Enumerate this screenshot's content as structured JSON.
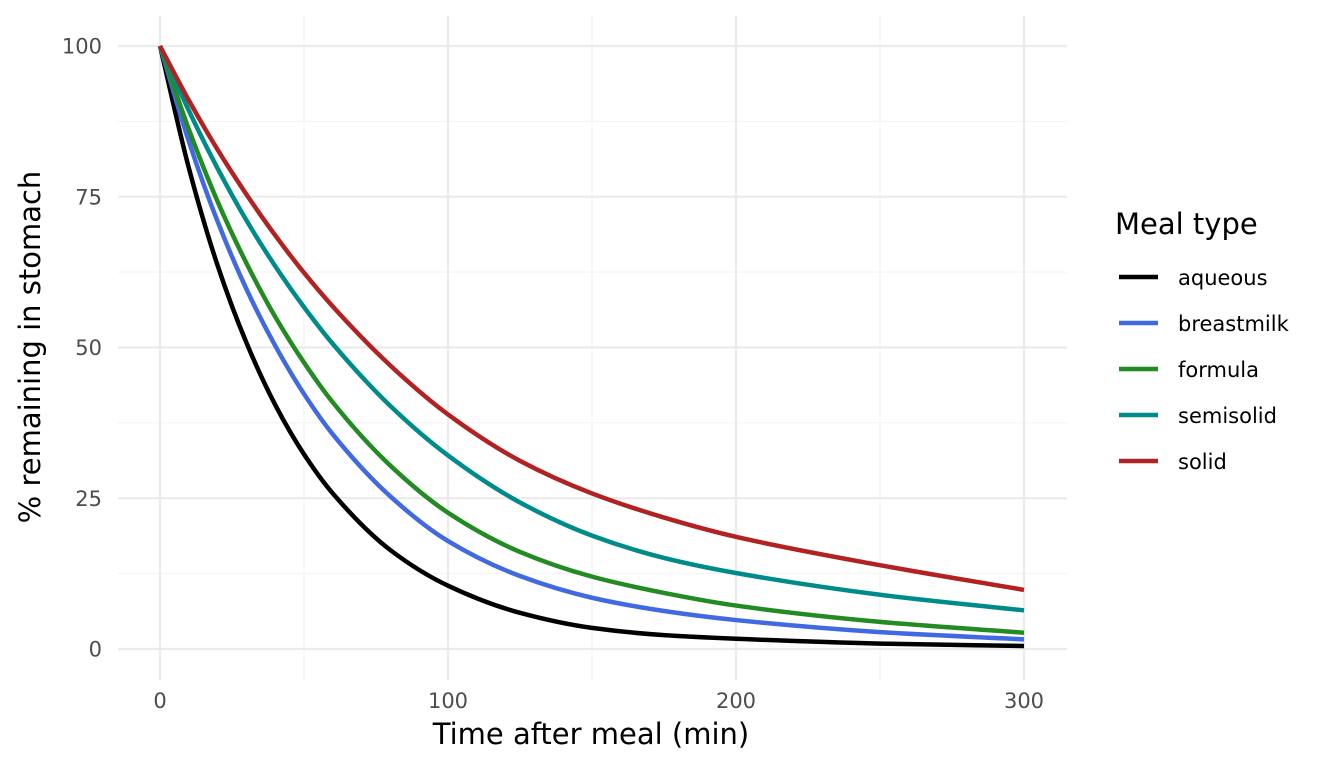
{
  "chart_data": {
    "type": "line",
    "title": "",
    "xlabel": "Time after meal (min)",
    "ylabel": "% remaining in stomach",
    "xlim": [
      0,
      300
    ],
    "ylim": [
      0,
      100
    ],
    "x_ticks": [
      0,
      100,
      200,
      300
    ],
    "y_ticks": [
      0,
      25,
      50,
      75,
      100
    ],
    "x_tick_labels": [
      "0",
      "100",
      "200",
      "300"
    ],
    "y_tick_labels": [
      "0",
      "25",
      "50",
      "75",
      "100"
    ],
    "grid": true,
    "legend": {
      "title": "Meal type",
      "position": "right"
    },
    "x": [
      0,
      10,
      20,
      30,
      40,
      50,
      60,
      80,
      100,
      125,
      150,
      175,
      200,
      250,
      300
    ],
    "series": [
      {
        "name": "aqueous",
        "color": "#000000",
        "values": [
          100,
          79.8,
          63.6,
          50.8,
          40.5,
          32.3,
          25.8,
          16.4,
          10.5,
          6.0,
          3.5,
          2.3,
          1.7,
          0.9,
          0.5
        ]
      },
      {
        "name": "breastmilk",
        "color": "#4169E1",
        "values": [
          100,
          84.2,
          70.9,
          59.7,
          50.3,
          42.3,
          35.6,
          25.3,
          17.9,
          12.1,
          8.5,
          6.3,
          4.8,
          2.8,
          1.6
        ]
      },
      {
        "name": "formula",
        "color": "#228B22",
        "values": [
          100,
          86.2,
          74.2,
          64.0,
          55.1,
          47.5,
          40.9,
          30.4,
          22.6,
          16.1,
          12.0,
          9.3,
          7.2,
          4.5,
          2.7
        ]
      },
      {
        "name": "semisolid",
        "color": "#008B8B",
        "values": [
          100,
          89.3,
          79.7,
          71.1,
          63.5,
          56.7,
          50.6,
          40.3,
          32.1,
          24.3,
          18.8,
          15.1,
          12.6,
          9.0,
          6.4
        ]
      },
      {
        "name": "solid",
        "color": "#B22222",
        "values": [
          100,
          91.0,
          82.8,
          75.4,
          68.6,
          62.4,
          56.8,
          47.0,
          38.9,
          31.2,
          25.8,
          21.8,
          18.6,
          13.9,
          9.8
        ]
      }
    ]
  }
}
